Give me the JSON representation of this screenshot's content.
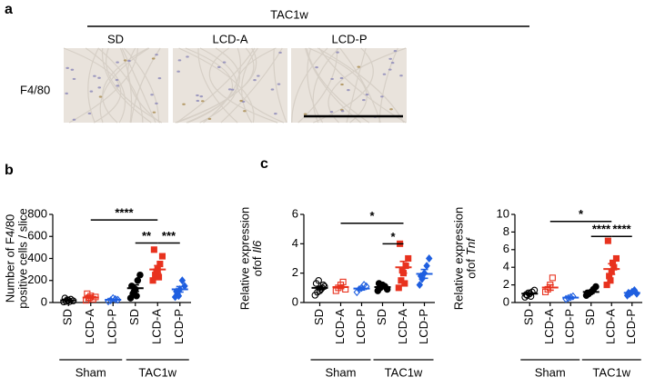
{
  "panel_a": {
    "label": "a",
    "group": "TAC1w",
    "columns": [
      "SD",
      "LCD-A",
      "LCD-P"
    ],
    "row": "F4/80"
  },
  "chart_data": [
    {
      "type": "strip",
      "panel": "b",
      "ylabel": [
        "Number of F4/80",
        "positive cells / slice"
      ],
      "categories": [
        "SD",
        "LCD-A",
        "LCD-P",
        "SD",
        "LCD-A",
        "LCD-P"
      ],
      "groups": [
        "Sham",
        "TAC1w"
      ],
      "colors": [
        "#000000",
        "#e8321e",
        "#1f5fe0",
        "#000000",
        "#e8321e",
        "#1f5fe0"
      ],
      "markers": [
        "circle",
        "square",
        "diamond",
        "circle",
        "square",
        "diamond"
      ],
      "filled": [
        false,
        false,
        false,
        true,
        true,
        true
      ],
      "points": [
        [
          5,
          10,
          20,
          30,
          15,
          40,
          25,
          8
        ],
        [
          20,
          40,
          60,
          30,
          50,
          80,
          45
        ],
        [
          10,
          20,
          40,
          30,
          25
        ],
        [
          40,
          80,
          120,
          200,
          250,
          150,
          100,
          60
        ],
        [
          200,
          250,
          300,
          350,
          420,
          480,
          280,
          230
        ],
        [
          50,
          80,
          120,
          200,
          150,
          100,
          60
        ]
      ],
      "mean": [
        20,
        45,
        25,
        130,
        300,
        120
      ],
      "sem": [
        5,
        8,
        6,
        30,
        35,
        25
      ],
      "ylim": [
        0,
        800
      ],
      "yticks": [
        0,
        200,
        400,
        600,
        800
      ],
      "significance": [
        {
          "from": 1,
          "to": 4,
          "y": 750,
          "label": "****"
        },
        {
          "from": 3,
          "to": 4,
          "y": 540,
          "label": "**"
        },
        {
          "from": 4,
          "to": 5,
          "y": 540,
          "label": "***"
        }
      ]
    },
    {
      "type": "strip",
      "panel": "c",
      "ylabel": [
        "Relative expression",
        "of"
      ],
      "ylabel_gene": "Il6",
      "categories": [
        "SD",
        "LCD-A",
        "LCD-P",
        "SD",
        "LCD-A",
        "LCD-P"
      ],
      "groups": [
        "Sham",
        "TAC1w"
      ],
      "colors": [
        "#000000",
        "#e8321e",
        "#1f5fe0",
        "#000000",
        "#e8321e",
        "#1f5fe0"
      ],
      "markers": [
        "circle",
        "square",
        "diamond",
        "circle",
        "square",
        "diamond"
      ],
      "filled": [
        false,
        false,
        false,
        true,
        true,
        true
      ],
      "points": [
        [
          0.5,
          0.7,
          0.8,
          1.0,
          1.1,
          1.3,
          1.5,
          0.9,
          1.2
        ],
        [
          0.8,
          1.0,
          1.2,
          1.4,
          0.9
        ],
        [
          0.7,
          0.9,
          1.0,
          1.2,
          1.1
        ],
        [
          0.8,
          1.0,
          1.2,
          1.1,
          0.9,
          1.3
        ],
        [
          1.0,
          1.5,
          2.0,
          2.5,
          3.0,
          4.0,
          2.2,
          1.3
        ],
        [
          1.2,
          1.6,
          2.0,
          2.5,
          3.0,
          1.8
        ]
      ],
      "mean": [
        1.0,
        1.05,
        0.95,
        1.05,
        2.4,
        1.95
      ],
      "sem": [
        0.1,
        0.1,
        0.1,
        0.08,
        0.4,
        0.3
      ],
      "ylim": [
        0,
        6
      ],
      "yticks": [
        0,
        2,
        4,
        6
      ],
      "significance": [
        {
          "from": 1,
          "to": 4,
          "y": 5.4,
          "label": "*"
        },
        {
          "from": 3,
          "to": 4,
          "y": 4.0,
          "label": "*"
        }
      ]
    },
    {
      "type": "strip",
      "ylabel": [
        "Relative expression",
        "of"
      ],
      "ylabel_gene": "Tnf",
      "categories": [
        "SD",
        "LCD-A",
        "LCD-P",
        "SD",
        "LCD-A",
        "LCD-P"
      ],
      "groups": [
        "Sham",
        "TAC1w"
      ],
      "colors": [
        "#000000",
        "#e8321e",
        "#1f5fe0",
        "#000000",
        "#e8321e",
        "#1f5fe0"
      ],
      "markers": [
        "circle",
        "square",
        "diamond",
        "circle",
        "square",
        "diamond"
      ],
      "filled": [
        false,
        false,
        false,
        true,
        true,
        true
      ],
      "points": [
        [
          0.6,
          0.8,
          1.0,
          1.2,
          1.4,
          0.9,
          1.1,
          0.7
        ],
        [
          1.2,
          1.5,
          2.0,
          2.8
        ],
        [
          0.4,
          0.5,
          0.6,
          0.7
        ],
        [
          0.8,
          1.0,
          1.2,
          1.5,
          1.8,
          1.1
        ],
        [
          2.0,
          3.0,
          3.5,
          4.0,
          5.0,
          7.0,
          2.5,
          4.5
        ],
        [
          0.8,
          1.0,
          1.2,
          1.4,
          1.0,
          1.1
        ]
      ],
      "mean": [
        1.0,
        1.7,
        0.55,
        1.2,
        3.8,
        1.1
      ],
      "sem": [
        0.1,
        0.3,
        0.07,
        0.15,
        0.6,
        0.1
      ],
      "ylim": [
        0,
        10
      ],
      "yticks": [
        0,
        2,
        4,
        6,
        8,
        10
      ],
      "significance": [
        {
          "from": 1,
          "to": 4,
          "y": 9.2,
          "label": "*"
        },
        {
          "from": 3,
          "to": 4,
          "y": 7.5,
          "label": "****"
        },
        {
          "from": 4,
          "to": 5,
          "y": 7.5,
          "label": "****"
        }
      ]
    }
  ]
}
